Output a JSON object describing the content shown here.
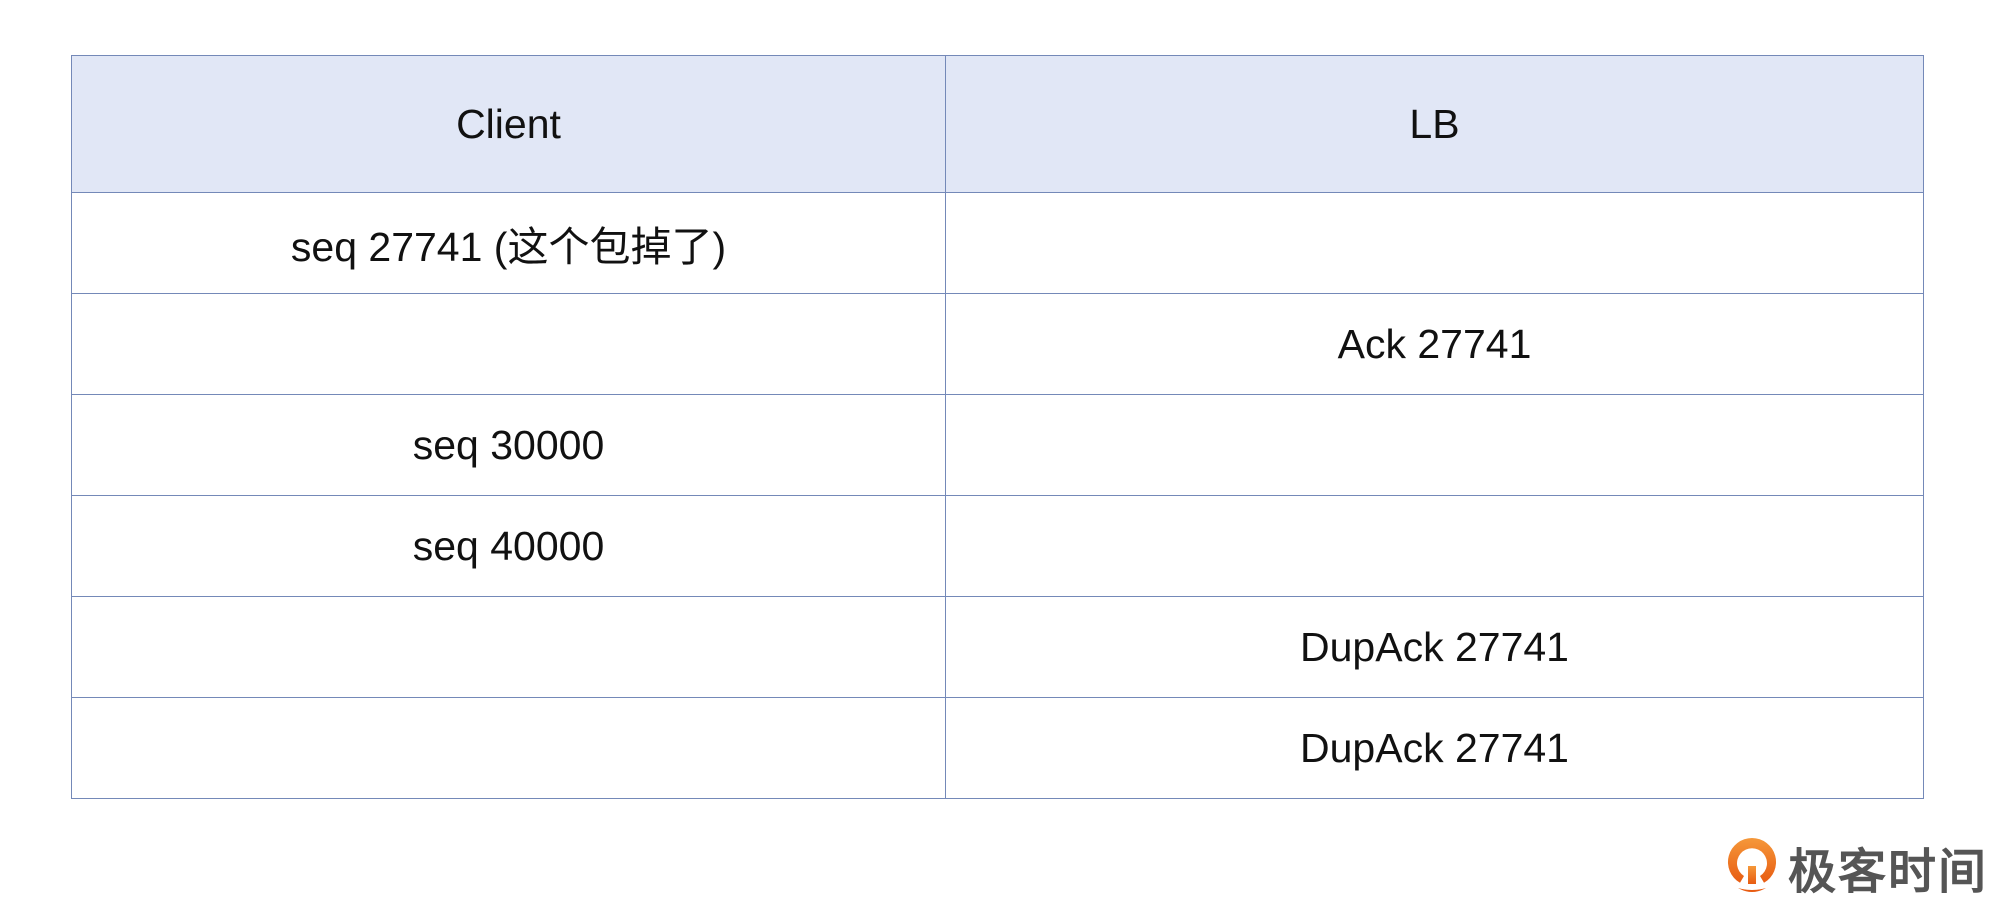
{
  "table": {
    "headers": [
      "Client",
      "LB"
    ],
    "rows": [
      [
        "seq 27741 (这个包掉了)",
        ""
      ],
      [
        "",
        "Ack 27741"
      ],
      [
        "seq 30000",
        ""
      ],
      [
        "seq 40000",
        ""
      ],
      [
        "",
        "DupAck 27741"
      ],
      [
        "",
        "DupAck 27741"
      ]
    ]
  },
  "logo": {
    "text": "极客时间",
    "icon": "geektime-logo-icon",
    "color": "#f07a1e"
  }
}
